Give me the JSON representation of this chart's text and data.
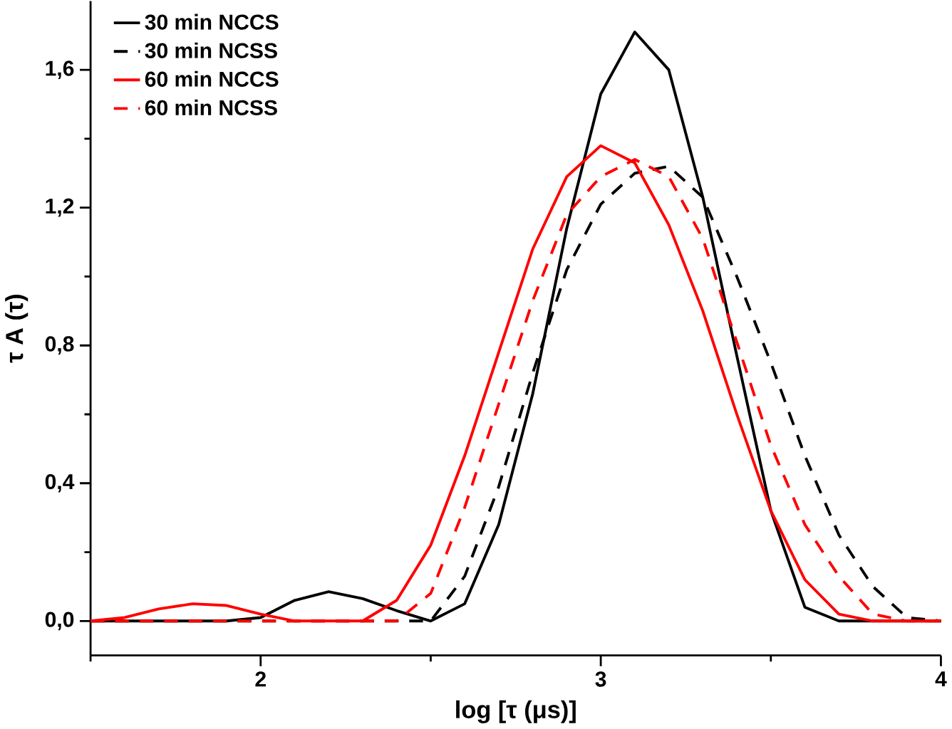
{
  "chart_data": {
    "type": "line",
    "xlabel": "log [τ (μs)]",
    "ylabel": "τ A (τ)",
    "x": [
      1.5,
      1.6,
      1.7,
      1.8,
      1.9,
      2.0,
      2.1,
      2.2,
      2.3,
      2.4,
      2.5,
      2.6,
      2.7,
      2.8,
      2.9,
      3.0,
      3.1,
      3.2,
      3.3,
      3.4,
      3.5,
      3.6,
      3.7,
      3.8,
      3.9,
      4.0
    ],
    "series": [
      {
        "name": "30 min NCCS",
        "color": "#000000",
        "line_style": "solid",
        "values": [
          0,
          0,
          0,
          0,
          0,
          0.01,
          0.06,
          0.085,
          0.065,
          0.03,
          0,
          0.05,
          0.28,
          0.66,
          1.14,
          1.53,
          1.71,
          1.6,
          1.23,
          0.77,
          0.32,
          0.04,
          0,
          0,
          0,
          0
        ]
      },
      {
        "name": "30 min NCSS",
        "color": "#000000",
        "line_style": "dashed",
        "values": [
          0,
          0,
          0,
          0,
          0,
          0,
          0,
          0,
          0,
          0,
          0,
          0.13,
          0.39,
          0.72,
          1.02,
          1.21,
          1.3,
          1.32,
          1.23,
          1.0,
          0.75,
          0.48,
          0.25,
          0.1,
          0.01,
          0
        ]
      },
      {
        "name": "60 min NCCS",
        "color": "#ff0000",
        "line_style": "solid",
        "values": [
          0,
          0.01,
          0.035,
          0.05,
          0.045,
          0.02,
          0,
          0,
          0,
          0.06,
          0.22,
          0.48,
          0.78,
          1.08,
          1.29,
          1.38,
          1.33,
          1.15,
          0.9,
          0.6,
          0.32,
          0.12,
          0.02,
          0,
          0,
          0
        ]
      },
      {
        "name": "60 min NCSS",
        "color": "#ff0000",
        "line_style": "dashed",
        "values": [
          0,
          0,
          0,
          0,
          0,
          0,
          0,
          0,
          0,
          0,
          0.08,
          0.33,
          0.63,
          0.93,
          1.18,
          1.29,
          1.34,
          1.29,
          1.11,
          0.81,
          0.51,
          0.28,
          0.13,
          0.02,
          0,
          0
        ]
      }
    ],
    "xlim": [
      1.5,
      4.0
    ],
    "ylim": [
      -0.1,
      1.8
    ],
    "xticks": [
      {
        "value": 1.5,
        "label": null
      },
      2,
      {
        "value": 2.5,
        "label": null
      },
      3,
      {
        "value": 3.5,
        "label": null
      },
      4
    ],
    "yticks": [
      {
        "value": 0,
        "label": "0,0"
      },
      {
        "value": 0.2,
        "label": null
      },
      {
        "value": 0.4,
        "label": "0,4"
      },
      {
        "value": 0.6,
        "label": null
      },
      {
        "value": 0.8,
        "label": "0,8"
      },
      {
        "value": 1.0,
        "label": null
      },
      {
        "value": 1.2,
        "label": "1,2"
      },
      {
        "value": 1.4,
        "label": null
      },
      {
        "value": 1.6,
        "label": "1,6"
      }
    ],
    "legend": "top left",
    "grid": false,
    "marker": "none"
  }
}
